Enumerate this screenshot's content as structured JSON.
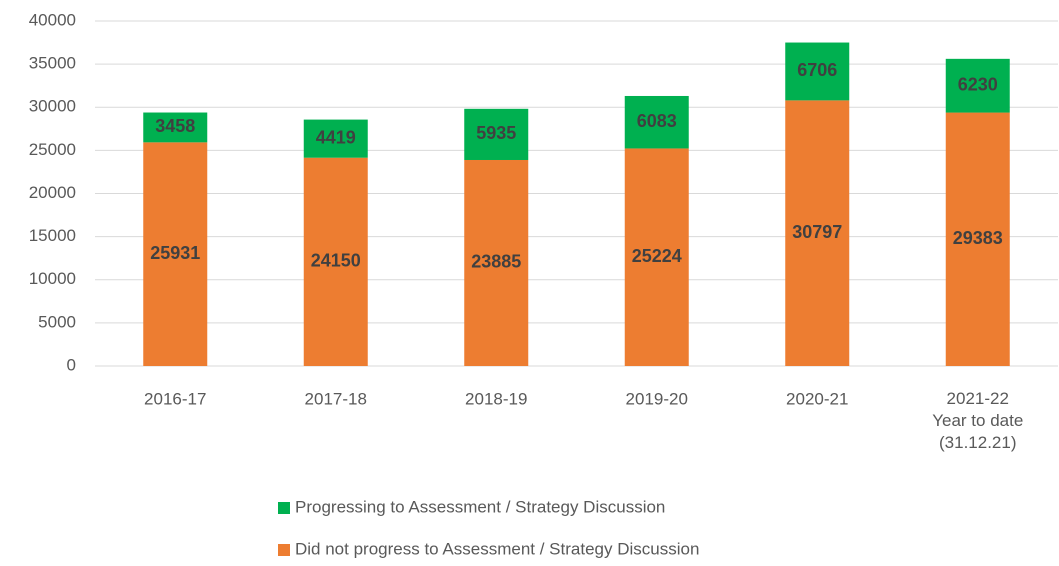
{
  "chart_data": {
    "type": "stacked_bar",
    "categories": [
      "2016-17",
      "2017-18",
      "2018-19",
      "2019-20",
      "2020-21",
      "2021-22\nYear to date\n(31.12.21)"
    ],
    "series": [
      {
        "name": "Did not progress to Assessment / Strategy Discussion",
        "color": "#ed7d31",
        "values": [
          25931,
          24150,
          23885,
          25224,
          30797,
          29383
        ]
      },
      {
        "name": "Progressing to Assessment / Strategy Discussion",
        "color": "#00b050",
        "values": [
          3458,
          4419,
          5935,
          6083,
          6706,
          6230
        ]
      }
    ],
    "ylim": [
      0,
      40000
    ],
    "yticks": [
      0,
      5000,
      10000,
      15000,
      20000,
      25000,
      30000,
      35000,
      40000
    ],
    "grid": true,
    "legend": "bottom"
  }
}
